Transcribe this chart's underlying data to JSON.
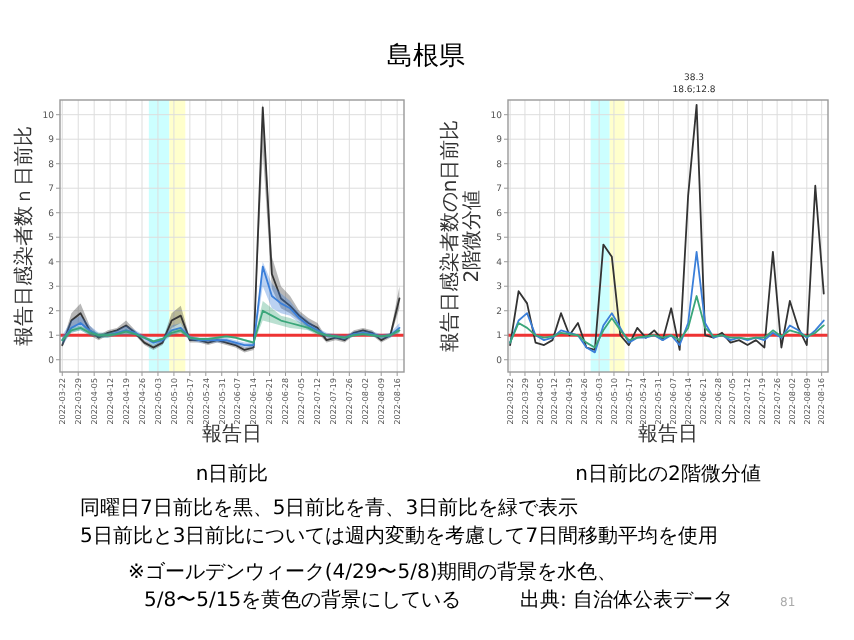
{
  "chart_data": [
    {
      "type": "line",
      "title": "n日前比",
      "xlabel": "報告日",
      "ylabel": "報告日感染者数ｎ日前比",
      "annotations": [
        "島根県",
        "同曜日7日前比を黒、5日前比を青、3日前比を緑で表示",
        "5日前比と3日前比については週内変動を考慮して7日間移動平均を使用",
        "※ゴールデンウィーク(4/29〜5/8)期間の背景を水色、",
        "5/8〜5/15を黄色の背景にしている",
        "出典: 自治体公表データ",
        "81"
      ],
      "x": [
        "2022-03-22",
        "2022-03-26",
        "2022-03-30",
        "2022-04-03",
        "2022-04-07",
        "2022-04-11",
        "2022-04-15",
        "2022-04-19",
        "2022-04-23",
        "2022-04-27",
        "2022-05-01",
        "2022-05-05",
        "2022-05-09",
        "2022-05-13",
        "2022-05-17",
        "2022-05-21",
        "2022-05-25",
        "2022-05-29",
        "2022-06-02",
        "2022-06-06",
        "2022-06-10",
        "2022-06-14",
        "2022-06-18",
        "2022-06-22",
        "2022-06-26",
        "2022-06-30",
        "2022-07-04",
        "2022-07-08",
        "2022-07-12",
        "2022-07-16",
        "2022-07-20",
        "2022-07-24",
        "2022-07-28",
        "2022-08-01",
        "2022-08-05",
        "2022-08-09",
        "2022-08-13",
        "2022-08-17"
      ],
      "series": [
        {
          "color": "#333333",
          "values": [
            0.6,
            1.6,
            1.9,
            1.2,
            0.9,
            1.1,
            1.2,
            1.4,
            1.1,
            0.7,
            0.5,
            0.7,
            1.6,
            1.8,
            0.8,
            0.8,
            0.7,
            0.8,
            0.7,
            0.6,
            0.4,
            0.5,
            10.3,
            3.5,
            2.5,
            2.2,
            1.8,
            1.5,
            1.3,
            0.8,
            0.9,
            0.8,
            1.1,
            1.2,
            1.1,
            0.8,
            1.0,
            2.5
          ],
          "lower": [
            0.5,
            1.3,
            1.5,
            1.0,
            0.8,
            1.0,
            1.1,
            1.2,
            1.0,
            0.6,
            0.4,
            0.6,
            1.3,
            1.5,
            0.7,
            0.7,
            0.6,
            0.7,
            0.6,
            0.5,
            0.3,
            0.4,
            8.5,
            2.9,
            2.1,
            1.9,
            1.6,
            1.3,
            1.1,
            0.7,
            0.8,
            0.7,
            1.0,
            1.1,
            1.0,
            0.7,
            0.9,
            2.1
          ],
          "upper": [
            0.7,
            1.9,
            2.3,
            1.4,
            1.0,
            1.2,
            1.3,
            1.6,
            1.2,
            0.8,
            0.6,
            0.8,
            1.9,
            2.2,
            0.9,
            0.9,
            0.8,
            0.9,
            0.8,
            0.7,
            0.5,
            0.6,
            10.5,
            4.2,
            3.0,
            2.6,
            2.0,
            1.7,
            1.5,
            0.9,
            1.0,
            0.9,
            1.2,
            1.3,
            1.2,
            0.9,
            1.1,
            3.0
          ]
        },
        {
          "color": "#3b7fd9",
          "values": [
            0.8,
            1.3,
            1.5,
            1.2,
            1.0,
            1.0,
            1.1,
            1.2,
            1.1,
            0.9,
            0.7,
            0.8,
            1.2,
            1.3,
            0.9,
            0.8,
            0.8,
            0.8,
            0.8,
            0.7,
            0.6,
            0.6,
            3.8,
            2.6,
            2.3,
            2.1,
            1.7,
            1.4,
            1.2,
            1.0,
            0.95,
            0.9,
            1.05,
            1.1,
            1.05,
            0.95,
            1.0,
            1.3
          ],
          "lower": [
            0.6,
            1.1,
            1.2,
            1.0,
            0.9,
            0.9,
            1.0,
            1.0,
            1.0,
            0.8,
            0.6,
            0.7,
            1.0,
            1.1,
            0.8,
            0.7,
            0.7,
            0.7,
            0.7,
            0.6,
            0.5,
            0.5,
            3.0,
            2.1,
            1.9,
            1.8,
            1.5,
            1.2,
            1.1,
            0.9,
            0.85,
            0.8,
            0.95,
            1.0,
            0.95,
            0.85,
            0.9,
            1.1
          ],
          "upper": [
            1.0,
            1.6,
            1.8,
            1.4,
            1.1,
            1.1,
            1.2,
            1.4,
            1.2,
            1.0,
            0.8,
            0.9,
            1.4,
            1.5,
            1.0,
            0.9,
            0.9,
            0.9,
            0.9,
            0.8,
            0.7,
            0.7,
            4.0,
            3.1,
            2.7,
            2.4,
            1.9,
            1.6,
            1.3,
            1.1,
            1.05,
            1.0,
            1.15,
            1.2,
            1.15,
            1.05,
            1.1,
            1.5
          ]
        },
        {
          "color": "#3aa67a",
          "values": [
            0.8,
            1.2,
            1.3,
            1.1,
            1.0,
            1.0,
            1.05,
            1.15,
            1.05,
            0.9,
            0.75,
            0.85,
            1.1,
            1.2,
            0.9,
            0.85,
            0.85,
            0.9,
            0.95,
            0.9,
            0.8,
            0.7,
            2.0,
            1.8,
            1.6,
            1.5,
            1.4,
            1.3,
            1.1,
            1.0,
            0.95,
            0.9,
            1.0,
            1.05,
            1.0,
            0.95,
            1.0,
            1.2
          ],
          "lower": [
            0.7,
            1.1,
            1.2,
            1.0,
            0.9,
            0.9,
            1.0,
            1.05,
            1.0,
            0.85,
            0.7,
            0.8,
            1.0,
            1.1,
            0.85,
            0.8,
            0.8,
            0.85,
            0.9,
            0.85,
            0.75,
            0.65,
            1.6,
            1.5,
            1.4,
            1.3,
            1.25,
            1.2,
            1.0,
            0.95,
            0.9,
            0.85,
            0.95,
            1.0,
            0.95,
            0.9,
            0.95,
            1.1
          ],
          "upper": [
            0.9,
            1.3,
            1.4,
            1.2,
            1.1,
            1.1,
            1.1,
            1.25,
            1.1,
            0.95,
            0.8,
            0.9,
            1.2,
            1.3,
            0.95,
            0.9,
            0.9,
            0.95,
            1.0,
            0.95,
            0.85,
            0.75,
            2.4,
            2.1,
            1.8,
            1.7,
            1.55,
            1.4,
            1.2,
            1.05,
            1.0,
            0.95,
            1.05,
            1.1,
            1.05,
            1.0,
            1.05,
            1.3
          ]
        }
      ],
      "xlim": [
        "2022-03-21",
        "2022-08-19"
      ],
      "ylim": [
        -0.5,
        10.6
      ],
      "xticks": [
        "2022-03-22",
        "2022-03-29",
        "2022-04-05",
        "2022-04-12",
        "2022-04-19",
        "2022-04-26",
        "2022-05-03",
        "2022-05-10",
        "2022-05-17",
        "2022-05-24",
        "2022-05-31",
        "2022-06-07",
        "2022-06-14",
        "2022-06-21",
        "2022-06-28",
        "2022-07-05",
        "2022-07-12",
        "2022-07-19",
        "2022-07-26",
        "2022-08-02",
        "2022-08-09",
        "2022-08-16"
      ],
      "yticks": [
        0,
        1,
        2,
        3,
        4,
        5,
        6,
        7,
        8,
        9,
        10
      ],
      "ref_lines": [
        {
          "axis": "y",
          "value": 1,
          "color": "#ee3333"
        }
      ],
      "bands": [
        {
          "axis": "x",
          "from": "2022-04-29",
          "to": "2022-05-08",
          "color": "#ccffff"
        },
        {
          "axis": "x",
          "from": "2022-05-08",
          "to": "2022-05-15",
          "color": "#ffffcc"
        }
      ],
      "grid": true
    },
    {
      "type": "line",
      "title": "n日前比の2階微分値",
      "xlabel": "報告日",
      "ylabel": "報告日感染者数のn日前比\n2階微分値",
      "annotations": [
        "38.3",
        "18.6;12.8"
      ],
      "x": [
        "2022-03-22",
        "2022-03-26",
        "2022-03-30",
        "2022-04-03",
        "2022-04-07",
        "2022-04-11",
        "2022-04-15",
        "2022-04-19",
        "2022-04-23",
        "2022-04-27",
        "2022-05-01",
        "2022-05-05",
        "2022-05-09",
        "2022-05-13",
        "2022-05-17",
        "2022-05-21",
        "2022-05-25",
        "2022-05-29",
        "2022-06-02",
        "2022-06-06",
        "2022-06-10",
        "2022-06-14",
        "2022-06-18",
        "2022-06-22",
        "2022-06-26",
        "2022-06-30",
        "2022-07-04",
        "2022-07-08",
        "2022-07-12",
        "2022-07-16",
        "2022-07-20",
        "2022-07-24",
        "2022-07-28",
        "2022-08-01",
        "2022-08-05",
        "2022-08-09",
        "2022-08-13",
        "2022-08-17"
      ],
      "series": [
        {
          "color": "#333333",
          "values": [
            0.6,
            2.8,
            2.3,
            0.7,
            0.6,
            0.8,
            1.9,
            1.0,
            1.5,
            0.5,
            0.4,
            4.7,
            4.2,
            1.0,
            0.6,
            1.3,
            0.9,
            1.2,
            0.8,
            2.1,
            0.4,
            6.7,
            10.4,
            1.0,
            0.9,
            1.1,
            0.7,
            0.8,
            0.6,
            0.8,
            0.5,
            4.4,
            0.5,
            2.4,
            1.3,
            0.6,
            7.1,
            2.7
          ]
        },
        {
          "color": "#3b7fd9",
          "values": [
            0.7,
            1.6,
            1.9,
            1.0,
            0.8,
            0.9,
            1.2,
            1.1,
            1.0,
            0.5,
            0.3,
            1.4,
            1.9,
            1.3,
            0.7,
            0.9,
            0.9,
            1.0,
            0.8,
            1.0,
            0.6,
            1.5,
            4.4,
            1.5,
            0.9,
            1.0,
            0.8,
            0.9,
            0.8,
            0.9,
            0.8,
            1.1,
            0.9,
            1.4,
            1.2,
            0.9,
            1.2,
            1.6
          ]
        },
        {
          "color": "#3aa67a",
          "values": [
            0.7,
            1.5,
            1.3,
            1.0,
            0.9,
            0.95,
            1.1,
            1.05,
            1.0,
            0.7,
            0.5,
            1.2,
            1.7,
            1.2,
            0.8,
            0.9,
            0.95,
            1.0,
            0.9,
            1.0,
            0.8,
            1.3,
            2.6,
            1.3,
            0.95,
            1.0,
            0.9,
            0.9,
            0.85,
            0.9,
            0.9,
            1.2,
            0.95,
            1.2,
            1.1,
            0.95,
            1.1,
            1.4
          ]
        }
      ],
      "xlim": [
        "2022-03-21",
        "2022-08-19"
      ],
      "ylim": [
        -0.5,
        10.6
      ],
      "xticks": [
        "2022-03-22",
        "2022-03-29",
        "2022-04-05",
        "2022-04-12",
        "2022-04-19",
        "2022-04-26",
        "2022-05-03",
        "2022-05-10",
        "2022-05-17",
        "2022-05-24",
        "2022-05-31",
        "2022-06-07",
        "2022-06-14",
        "2022-06-21",
        "2022-06-28",
        "2022-07-05",
        "2022-07-12",
        "2022-07-19",
        "2022-07-26",
        "2022-08-02",
        "2022-08-09",
        "2022-08-16"
      ],
      "yticks": [
        0,
        1,
        2,
        3,
        4,
        5,
        6,
        7,
        8,
        9,
        10
      ],
      "ref_lines": [
        {
          "axis": "y",
          "value": 1,
          "color": "#ee3333"
        }
      ],
      "bands": [
        {
          "axis": "x",
          "from": "2022-04-29",
          "to": "2022-05-08",
          "color": "#ccffff"
        },
        {
          "axis": "x",
          "from": "2022-05-08",
          "to": "2022-05-15",
          "color": "#ffffcc"
        }
      ],
      "grid": true
    }
  ]
}
